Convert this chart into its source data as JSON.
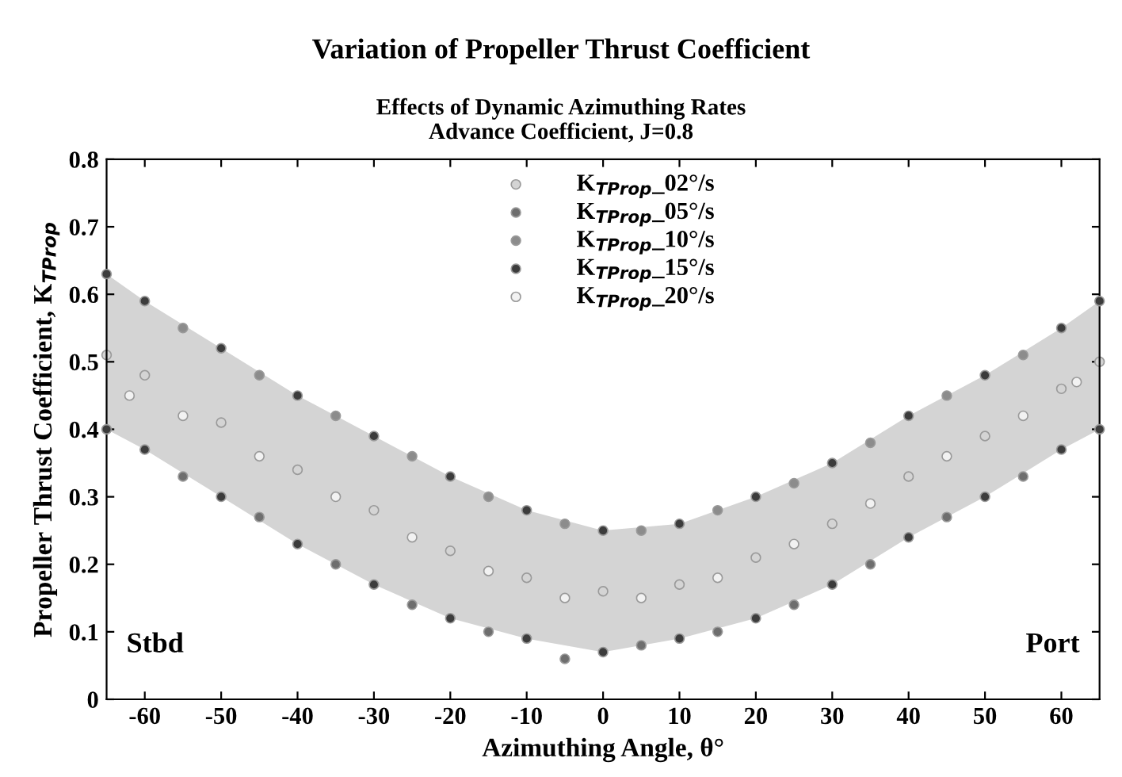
{
  "chart_data": {
    "type": "scatter",
    "title": "Variation of Propeller Thrust Coefficient",
    "subtitle": "Effects of Dynamic Azimuthing Rates\nAdvance Coefficient, J=0.8",
    "xlabel": "Azimuthing Angle, θ°",
    "ylabel": "Propeller Thrust Coefficient, K$_{TProp}$",
    "xlim": [
      -65,
      65
    ],
    "xticks": [
      -60,
      -50,
      -40,
      -30,
      -20,
      -10,
      0,
      10,
      20,
      30,
      40,
      50,
      60
    ],
    "ylim": [
      0,
      0.8
    ],
    "yticks": [
      0,
      0.1,
      0.2,
      0.3,
      0.4,
      0.5,
      0.6,
      0.7,
      0.8
    ],
    "grid": false,
    "legend": "top",
    "marker": "circle",
    "annotations": [
      "Stbd",
      "Port"
    ],
    "series": [
      {
        "name": "K$_{TProp}$_02°/s",
        "color": "#d4d4d4",
        "x": [
          -65,
          -60,
          -50,
          -40,
          -30,
          -20,
          -10,
          0,
          10,
          20,
          30,
          40,
          50,
          60,
          65
        ],
        "values": [
          0.51,
          0.48,
          0.41,
          0.34,
          0.28,
          0.22,
          0.18,
          0.16,
          0.17,
          0.21,
          0.26,
          0.33,
          0.39,
          0.46,
          0.5
        ],
        "lower": [
          0.4,
          0.37,
          0.3,
          0.23,
          0.17,
          0.12,
          0.09,
          0.07,
          0.09,
          0.12,
          0.17,
          0.24,
          0.3,
          0.37,
          0.4
        ],
        "upper": [
          0.63,
          0.59,
          0.52,
          0.45,
          0.39,
          0.33,
          0.28,
          0.25,
          0.26,
          0.3,
          0.35,
          0.42,
          0.48,
          0.55,
          0.59
        ]
      },
      {
        "name": "K$_{TProp}$_05°/s",
        "color": "#6e6e6e",
        "x": [
          -55,
          -45,
          -35,
          -25,
          -15,
          -5,
          5,
          15,
          25,
          35,
          45,
          55
        ],
        "values": [
          0.33,
          0.27,
          0.2,
          0.14,
          0.1,
          0.06,
          0.08,
          0.1,
          0.14,
          0.2,
          0.27,
          0.33
        ]
      },
      {
        "name": "K$_{TProp}$_10°/s",
        "color": "#8c8c8c",
        "x": [
          -55,
          -45,
          -35,
          -25,
          -15,
          -5,
          5,
          15,
          25,
          35,
          45,
          55
        ],
        "values": [
          0.55,
          0.48,
          0.42,
          0.36,
          0.3,
          0.26,
          0.25,
          0.28,
          0.32,
          0.38,
          0.45,
          0.51
        ]
      },
      {
        "name": "K$_{TProp}$_15°/s",
        "color": "#3c3c3c",
        "x": [
          -65,
          -60,
          -50,
          -40,
          -30,
          -20,
          -10,
          0,
          10,
          20,
          30,
          40,
          50,
          60,
          65,
          -65,
          -60,
          -50,
          -40,
          -30,
          -20,
          -10,
          0,
          10,
          20,
          30,
          40,
          50,
          60,
          65
        ],
        "values": [
          0.63,
          0.59,
          0.52,
          0.45,
          0.39,
          0.33,
          0.28,
          0.25,
          0.26,
          0.3,
          0.35,
          0.42,
          0.48,
          0.55,
          0.59,
          0.4,
          0.37,
          0.3,
          0.23,
          0.17,
          0.12,
          0.09,
          0.07,
          0.09,
          0.12,
          0.17,
          0.24,
          0.3,
          0.37,
          0.4
        ]
      },
      {
        "name": "K$_{TProp}$_20°/s",
        "color": "#f2f2f2",
        "x": [
          -62,
          -55,
          -45,
          -35,
          -25,
          -15,
          -5,
          5,
          15,
          25,
          35,
          45,
          55,
          62
        ],
        "values": [
          0.45,
          0.42,
          0.36,
          0.3,
          0.24,
          0.19,
          0.15,
          0.15,
          0.18,
          0.23,
          0.29,
          0.36,
          0.42,
          0.47
        ]
      }
    ]
  }
}
